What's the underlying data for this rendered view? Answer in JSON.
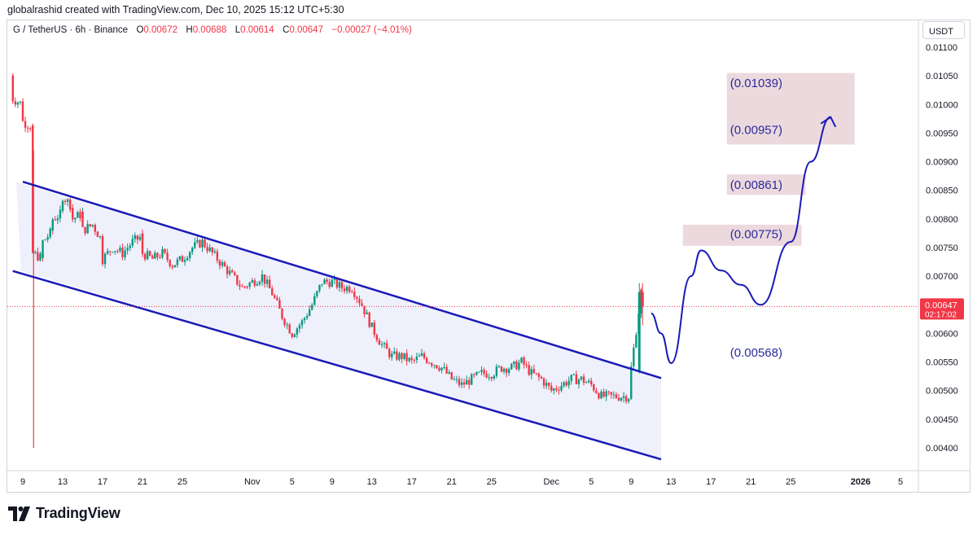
{
  "caption": "globalrashid created with TradingView.com, Dec 10, 2025 15:12 UTC+5:30",
  "symbol": {
    "name": "G / TetherUS · 6h · Binance",
    "open_label": "O",
    "open": "0.00672",
    "high_label": "H",
    "high": "0.00688",
    "low_label": "L",
    "low": "0.00614",
    "close_label": "C",
    "close": "0.00647",
    "change": "−0.00027 (−4.01%)"
  },
  "currency": "USDT",
  "price_tag": {
    "price": "0.00647",
    "countdown": "02:17:02",
    "color": "#f23645"
  },
  "brand": "TradingView",
  "colors": {
    "up": "#089981",
    "down": "#f23645",
    "channel": "#1a1ab8",
    "channel_fill": "#eef0fb",
    "target_box": "#ecd9dd",
    "label_text": "#2a2a9c"
  },
  "chart_data": {
    "type": "candlestick",
    "timeframe": "6h",
    "ylim": [
      0.0037,
      0.0112
    ],
    "y_ticks": [
      "0.00400",
      "0.00450",
      "0.00500",
      "0.00550",
      "0.00600",
      "0.00650",
      "0.00700",
      "0.00750",
      "0.00800",
      "0.00850",
      "0.00900",
      "0.00950",
      "0.01000",
      "0.01050",
      "0.01100"
    ],
    "x_ticks": [
      "9",
      "13",
      "17",
      "21",
      "25",
      "Nov",
      "5",
      "9",
      "13",
      "17",
      "21",
      "25",
      "Dec",
      "5",
      "9",
      "13",
      "17",
      "21",
      "25",
      "2026",
      "5"
    ],
    "x_tick_dates": [
      "2025-10-09",
      "2025-10-13",
      "2025-10-17",
      "2025-10-21",
      "2025-10-25",
      "2025-11-01",
      "2025-11-05",
      "2025-11-09",
      "2025-11-13",
      "2025-11-17",
      "2025-11-21",
      "2025-11-25",
      "2025-12-01",
      "2025-12-05",
      "2025-12-09",
      "2025-12-13",
      "2025-12-17",
      "2025-12-21",
      "2025-12-25",
      "2026-01-01",
      "2026-01-05"
    ],
    "approx_path": [
      [
        "2025-10-08",
        0.0105
      ],
      [
        "2025-10-08",
        0.0101
      ],
      [
        "2025-10-09",
        0.01
      ],
      [
        "2025-10-09",
        0.0097
      ],
      [
        "2025-10-10",
        0.0096
      ],
      [
        "2025-10-10",
        0.0092
      ],
      [
        "2025-10-10",
        0.0074
      ],
      [
        "2025-10-11",
        0.0073
      ],
      [
        "2025-10-11",
        0.0076
      ],
      [
        "2025-10-12",
        0.0078
      ],
      [
        "2025-10-12",
        0.008
      ],
      [
        "2025-10-13",
        0.0081
      ],
      [
        "2025-10-13",
        0.0084
      ],
      [
        "2025-10-14",
        0.0082
      ],
      [
        "2025-10-14",
        0.008
      ],
      [
        "2025-10-15",
        0.0081
      ],
      [
        "2025-10-15",
        0.0078
      ],
      [
        "2025-10-16",
        0.0079
      ],
      [
        "2025-10-17",
        0.0076
      ],
      [
        "2025-10-17",
        0.0073
      ],
      [
        "2025-10-18",
        0.0075
      ],
      [
        "2025-10-19",
        0.0074
      ],
      [
        "2025-10-20",
        0.0076
      ],
      [
        "2025-10-21",
        0.0077
      ],
      [
        "2025-10-21",
        0.0074
      ],
      [
        "2025-10-22",
        0.0073
      ],
      [
        "2025-10-23",
        0.0074
      ],
      [
        "2025-10-24",
        0.0072
      ],
      [
        "2025-10-25",
        0.0073
      ],
      [
        "2025-10-26",
        0.0075
      ],
      [
        "2025-10-27",
        0.0076
      ],
      [
        "2025-10-28",
        0.0074
      ],
      [
        "2025-10-29",
        0.0072
      ],
      [
        "2025-10-30",
        0.007
      ],
      [
        "2025-10-31",
        0.0068
      ],
      [
        "2025-11-01",
        0.0069
      ],
      [
        "2025-11-02",
        0.007
      ],
      [
        "2025-11-03",
        0.0067
      ],
      [
        "2025-11-04",
        0.0063
      ],
      [
        "2025-11-05",
        0.006
      ],
      [
        "2025-11-06",
        0.0062
      ],
      [
        "2025-11-07",
        0.0065
      ],
      [
        "2025-11-08",
        0.0069
      ],
      [
        "2025-11-09",
        0.0069
      ],
      [
        "2025-11-10",
        0.0068
      ],
      [
        "2025-11-11",
        0.0068
      ],
      [
        "2025-11-12",
        0.0065
      ],
      [
        "2025-11-13",
        0.0061
      ],
      [
        "2025-11-14",
        0.0058
      ],
      [
        "2025-11-15",
        0.0056
      ],
      [
        "2025-11-16",
        0.0056
      ],
      [
        "2025-11-17",
        0.0055
      ],
      [
        "2025-11-18",
        0.0056
      ],
      [
        "2025-11-19",
        0.0055
      ],
      [
        "2025-11-20",
        0.0054
      ],
      [
        "2025-11-21",
        0.0052
      ],
      [
        "2025-11-22",
        0.0051
      ],
      [
        "2025-11-23",
        0.0052
      ],
      [
        "2025-11-24",
        0.0053
      ],
      [
        "2025-11-25",
        0.0053
      ],
      [
        "2025-11-26",
        0.0054
      ],
      [
        "2025-11-27",
        0.0054
      ],
      [
        "2025-11-28",
        0.0055
      ],
      [
        "2025-11-29",
        0.0053
      ],
      [
        "2025-11-30",
        0.0052
      ],
      [
        "2025-12-01",
        0.005
      ],
      [
        "2025-12-02",
        0.0051
      ],
      [
        "2025-12-03",
        0.0052
      ],
      [
        "2025-12-04",
        0.0052
      ],
      [
        "2025-12-05",
        0.0051
      ],
      [
        "2025-12-06",
        0.0049
      ],
      [
        "2025-12-07",
        0.0049
      ],
      [
        "2025-12-08",
        0.0049
      ],
      [
        "2025-12-09",
        0.0049
      ],
      [
        "2025-12-09",
        0.0054
      ],
      [
        "2025-12-10",
        0.00672
      ],
      [
        "2025-12-10",
        0.00647
      ]
    ],
    "channel": {
      "upper": [
        [
          "2025-10-09",
          0.00865
        ],
        [
          "2025-12-12",
          0.00522
        ]
      ],
      "lower": [
        [
          "2025-10-08",
          0.00709
        ],
        [
          "2025-12-12",
          0.0038
        ]
      ]
    },
    "forecast_path": [
      [
        "2025-12-11",
        0.00635
      ],
      [
        "2025-12-12",
        0.006
      ],
      [
        "2025-12-13",
        0.00548
      ],
      [
        "2025-12-15",
        0.007
      ],
      [
        "2025-12-16",
        0.00745
      ],
      [
        "2025-12-18",
        0.0071
      ],
      [
        "2025-12-20",
        0.00685
      ],
      [
        "2025-12-22",
        0.0065
      ],
      [
        "2025-12-25",
        0.0076
      ],
      [
        "2025-12-27",
        0.009
      ],
      [
        "2025-12-29",
        0.00978
      ]
    ],
    "targets": [
      {
        "label": "(0.01039)",
        "value": 0.01039
      },
      {
        "label": "(0.00957)",
        "value": 0.00957
      },
      {
        "label": "(0.00861)",
        "value": 0.00861
      },
      {
        "label": "(0.00775)",
        "value": 0.00775
      },
      {
        "label": "(0.00568)",
        "value": 0.00568
      }
    ],
    "last_price": 0.00647
  }
}
